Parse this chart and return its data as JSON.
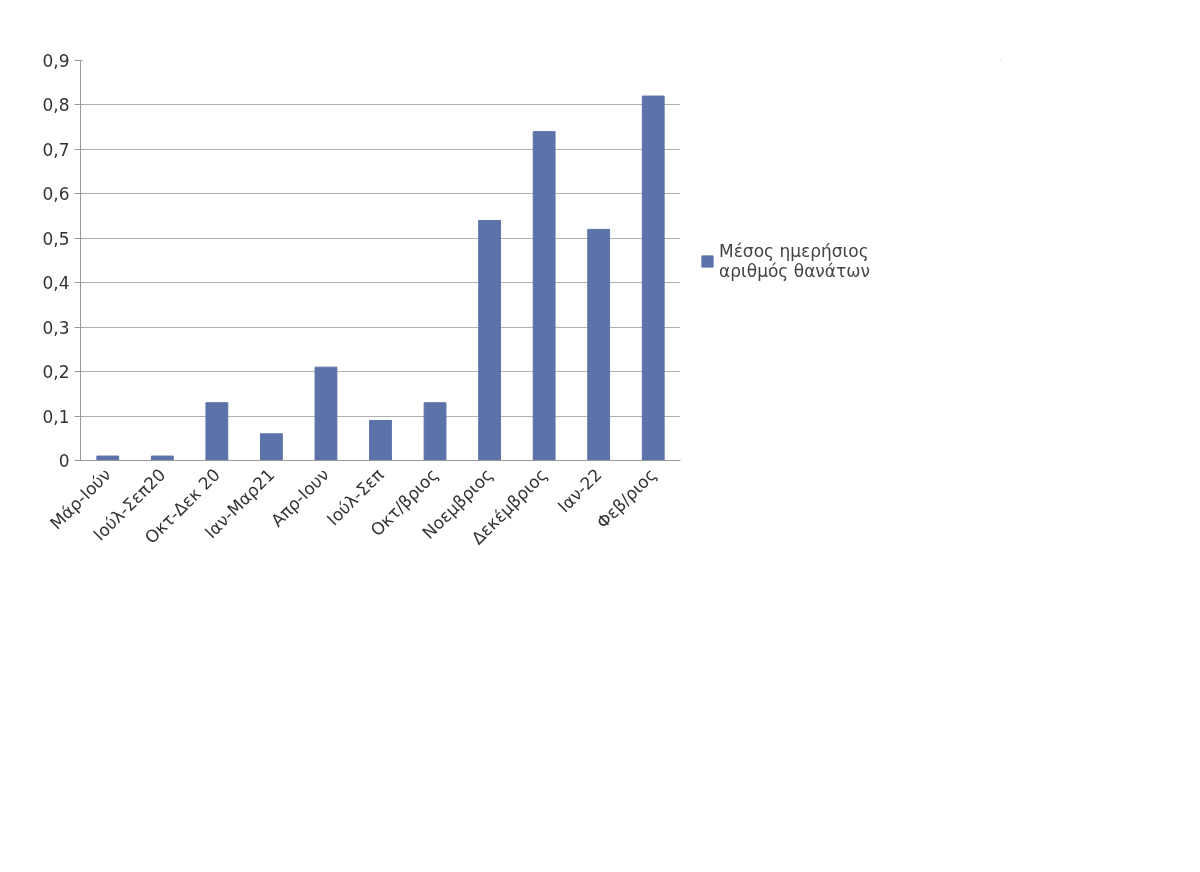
{
  "chart_data": {
    "type": "bar",
    "categories": [
      "Μάρ-Ιούν",
      "Ιούλ-Σεπ20",
      "Οκτ-Δεκ 20",
      "Ιαν-Μαρ21",
      "Απρ-Ιουν",
      "Ιούλ-Σεπ",
      "Οκτ/βριος",
      "Νοεμβριος",
      "Δεκέμβριος",
      "Ιαν-22",
      "Φεβ/ριος"
    ],
    "series": [
      {
        "name": "Μέσος ημερήσιος αριθμός θανάτων",
        "color": "#5b73a9",
        "values": [
          0.01,
          0.01,
          0.13,
          0.06,
          0.21,
          0.09,
          0.13,
          0.54,
          0.74,
          0.52,
          0.82
        ]
      }
    ],
    "ylim": [
      0,
      0.9
    ],
    "yticks": [
      {
        "value": 0,
        "label": "0"
      },
      {
        "value": 0.1,
        "label": "0,1"
      },
      {
        "value": 0.2,
        "label": "0,2"
      },
      {
        "value": 0.3,
        "label": "0,3"
      },
      {
        "value": 0.4,
        "label": "0,4"
      },
      {
        "value": 0.5,
        "label": "0,5"
      },
      {
        "value": 0.6,
        "label": "0,6"
      },
      {
        "value": 0.7,
        "label": "0,7"
      },
      {
        "value": 0.8,
        "label": "0,8"
      },
      {
        "value": 0.9,
        "label": "0,9"
      }
    ],
    "grid": "y",
    "legend": "right"
  }
}
